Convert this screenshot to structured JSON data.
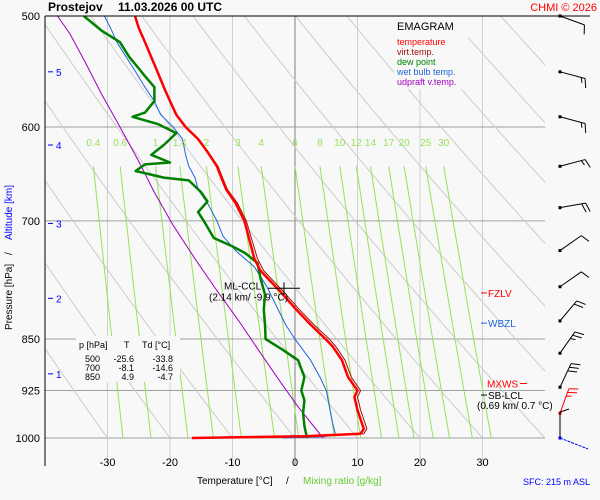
{
  "header": {
    "station": "Prostejov",
    "datetime": "11.03.2026 00 UTC",
    "copyright": "CHMI © 2026"
  },
  "chart_data": {
    "type": "line",
    "subtype": "emagram",
    "title": "Prostejov    11.03.2026 00 UTC",
    "xlabel": "Temperature [°C]",
    "xlabel_separator": "/",
    "xlabel2": "Mixing ratio [g/kg]",
    "ylabel": "Pressure [hPa]",
    "ylabel_separator": "/",
    "ylabel2": "Altitude [km]",
    "xlim": [
      -40,
      32
    ],
    "ylim": [
      1015,
      500
    ],
    "y_scale": "log",
    "grid": true,
    "x_ticks": [
      -30,
      -20,
      -10,
      0,
      10,
      20,
      30
    ],
    "x_tick_labels": [
      "-30",
      "-20",
      "-10",
      "0",
      "10",
      "20",
      "30"
    ],
    "pressure_ticks": [
      500,
      600,
      700,
      850,
      925,
      1000
    ],
    "pressure_tick_labels": [
      "500",
      "600",
      "700",
      "850",
      "925",
      "1000"
    ],
    "altitude_ticks": [
      {
        "km": 5,
        "p": 548
      },
      {
        "km": 4,
        "p": 618
      },
      {
        "km": 3,
        "p": 703
      },
      {
        "km": 2,
        "p": 795
      },
      {
        "km": 1,
        "p": 900
      }
    ],
    "mixing_ratio_labels": [
      "0.4",
      "0.6",
      "1",
      "1.4",
      "2",
      "3",
      "4",
      "6",
      "8",
      "10",
      "12",
      "14",
      "17",
      "20",
      "25",
      "30"
    ],
    "mixing_ratio_values": [
      0.4,
      0.6,
      1,
      1.4,
      2,
      3,
      4,
      6,
      8,
      10,
      12,
      14,
      17,
      20,
      25,
      30
    ],
    "legend": {
      "title": "EMAGRAM",
      "placement": "top-right",
      "entries": [
        {
          "label": "temperature",
          "color": "#ff0000"
        },
        {
          "label": "virt.temp.",
          "color": "#a01010"
        },
        {
          "label": "dew point",
          "color": "#008000"
        },
        {
          "label": "wet bulb temp.",
          "color": "#1e64dc"
        },
        {
          "label": "udpraft v.temp.",
          "color": "#a000c0"
        }
      ]
    },
    "series": [
      {
        "name": "temperature",
        "color": "#ff0000",
        "points": [
          [
            -16.5,
            1000
          ],
          [
            1.5,
            997
          ],
          [
            10.5,
            993
          ],
          [
            11.0,
            985
          ],
          [
            10.5,
            970
          ],
          [
            10.0,
            955
          ],
          [
            9.5,
            935
          ],
          [
            10.0,
            925
          ],
          [
            8.5,
            905
          ],
          [
            7.5,
            880
          ],
          [
            6.0,
            860
          ],
          [
            4.9,
            850
          ],
          [
            2.5,
            830
          ],
          [
            0.0,
            808
          ],
          [
            -2.5,
            785
          ],
          [
            -5.5,
            760
          ],
          [
            -6.5,
            745
          ],
          [
            -8.1,
            700
          ],
          [
            -9.5,
            680
          ],
          [
            -11.0,
            665
          ],
          [
            -11.8,
            652
          ],
          [
            -12.5,
            640
          ],
          [
            -14.0,
            625
          ],
          [
            -15.5,
            612
          ],
          [
            -17.5,
            600
          ],
          [
            -19.0,
            588
          ],
          [
            -20.0,
            575
          ],
          [
            -21.0,
            562
          ],
          [
            -22.0,
            548
          ],
          [
            -23.0,
            535
          ],
          [
            -24.0,
            522
          ],
          [
            -25.0,
            510
          ],
          [
            -25.6,
            500
          ]
        ]
      },
      {
        "name": "virt.temp.",
        "color": "#a01010",
        "points": [
          [
            -16.0,
            1000
          ],
          [
            2.0,
            997
          ],
          [
            11.0,
            993
          ],
          [
            11.5,
            985
          ],
          [
            11.0,
            970
          ],
          [
            10.5,
            955
          ],
          [
            10.0,
            935
          ],
          [
            10.5,
            925
          ],
          [
            9.0,
            905
          ],
          [
            8.0,
            880
          ],
          [
            6.5,
            860
          ],
          [
            5.5,
            850
          ],
          [
            3.0,
            830
          ],
          [
            0.5,
            808
          ],
          [
            -2.0,
            785
          ],
          [
            -5.0,
            760
          ],
          [
            -6.0,
            745
          ],
          [
            -7.8,
            700
          ],
          [
            -9.2,
            680
          ],
          [
            -10.8,
            665
          ],
          [
            -11.6,
            652
          ],
          [
            -12.3,
            640
          ],
          [
            -13.9,
            625
          ],
          [
            -15.4,
            612
          ],
          [
            -17.4,
            600
          ],
          [
            -18.9,
            588
          ],
          [
            -19.9,
            575
          ],
          [
            -20.9,
            562
          ],
          [
            -21.9,
            548
          ],
          [
            -22.9,
            535
          ],
          [
            -23.9,
            522
          ],
          [
            -24.9,
            510
          ],
          [
            -25.5,
            500
          ]
        ]
      },
      {
        "name": "dew point",
        "color": "#008000",
        "points": [
          [
            2.0,
            1000
          ],
          [
            1.8,
            995
          ],
          [
            1.5,
            980
          ],
          [
            1.3,
            960
          ],
          [
            1.5,
            940
          ],
          [
            1.0,
            925
          ],
          [
            1.5,
            905
          ],
          [
            0.5,
            880
          ],
          [
            -2.0,
            865
          ],
          [
            -4.7,
            850
          ],
          [
            -4.8,
            830
          ],
          [
            -5.0,
            810
          ],
          [
            -4.8,
            790
          ],
          [
            -5.5,
            770
          ],
          [
            -6.0,
            750
          ],
          [
            -8.0,
            738
          ],
          [
            -10.0,
            730
          ],
          [
            -13.0,
            720
          ],
          [
            -14.6,
            700
          ],
          [
            -15.5,
            690
          ],
          [
            -14.0,
            678
          ],
          [
            -15.0,
            668
          ],
          [
            -17.0,
            655
          ],
          [
            -21.0,
            652
          ],
          [
            -25.5,
            645
          ],
          [
            -24.0,
            638
          ],
          [
            -20.0,
            636
          ],
          [
            -23.0,
            628
          ],
          [
            -21.0,
            618
          ],
          [
            -19.0,
            606
          ],
          [
            -22.0,
            597
          ],
          [
            -26.0,
            590
          ],
          [
            -24.0,
            586
          ],
          [
            -22.5,
            575
          ],
          [
            -22.5,
            562
          ],
          [
            -24.0,
            552
          ],
          [
            -25.0,
            545
          ],
          [
            -26.5,
            535
          ],
          [
            -28.0,
            522
          ],
          [
            -31.0,
            512
          ],
          [
            -33.8,
            500
          ]
        ]
      },
      {
        "name": "wet bulb temp.",
        "color": "#1e64dc",
        "points": [
          [
            -2.0,
            1000
          ],
          [
            4.5,
            998
          ],
          [
            6.5,
            995
          ],
          [
            6.0,
            975
          ],
          [
            5.5,
            950
          ],
          [
            5.0,
            925
          ],
          [
            4.0,
            905
          ],
          [
            2.5,
            880
          ],
          [
            1.0,
            862
          ],
          [
            0.0,
            850
          ],
          [
            -1.5,
            830
          ],
          [
            -3.0,
            805
          ],
          [
            -4.5,
            780
          ],
          [
            -6.5,
            755
          ],
          [
            -9.5,
            735
          ],
          [
            -11.5,
            718
          ],
          [
            -12.5,
            700
          ],
          [
            -14.0,
            680
          ],
          [
            -15.5,
            665
          ],
          [
            -16.0,
            652
          ],
          [
            -17.0,
            640
          ],
          [
            -17.5,
            628
          ],
          [
            -18.0,
            612
          ],
          [
            -19.5,
            600
          ],
          [
            -21.5,
            588
          ],
          [
            -22.5,
            575
          ],
          [
            -24.0,
            562
          ],
          [
            -25.5,
            548
          ],
          [
            -27.0,
            535
          ],
          [
            -28.5,
            522
          ],
          [
            -29.5,
            510
          ],
          [
            -30.5,
            500
          ]
        ]
      },
      {
        "name": "udpraft v.temp.",
        "color": "#a000c0",
        "points": [
          [
            4.5,
            1000
          ],
          [
            0.5,
            950
          ],
          [
            -2.5,
            910
          ],
          [
            -5.5,
            870
          ],
          [
            -9.0,
            825
          ],
          [
            -12.5,
            785
          ],
          [
            -16.0,
            745
          ],
          [
            -19.5,
            705
          ],
          [
            -22.5,
            668
          ],
          [
            -25.0,
            635
          ],
          [
            -28.0,
            600
          ],
          [
            -31.0,
            568
          ],
          [
            -33.5,
            540
          ],
          [
            -36.0,
            515
          ],
          [
            -38.0,
            500
          ]
        ]
      }
    ],
    "table": {
      "columns": [
        "p [hPa]",
        "T",
        "Td [°C]"
      ],
      "rows": [
        [
          "500",
          "-25.6",
          "-33.8"
        ],
        [
          "700",
          "-8.1",
          "-14.6"
        ],
        [
          "850",
          "4.9",
          "-4.7"
        ]
      ]
    },
    "annotations": [
      {
        "id": "ml-ccl",
        "label": "ML-CCL",
        "detail": "(2.14 km/ -9.9 °C)",
        "p": 782,
        "t": -3.0,
        "color": "#000000"
      },
      {
        "id": "fzlv",
        "label": "FZLV",
        "p": 788,
        "color": "#ff0000"
      },
      {
        "id": "wbzl",
        "label": "WBZL",
        "p": 828,
        "color": "#1e64dc"
      },
      {
        "id": "mxws",
        "label": "MXWS",
        "p": 928,
        "color": "#ff0000"
      },
      {
        "id": "sb-lcl",
        "label": "SB-LCL",
        "detail": "(0.69 km/ 0.7 °C)",
        "p": 938,
        "color": "#000000"
      }
    ],
    "wind_barbs": [
      {
        "p": 500,
        "dir": 290,
        "kt": 10
      },
      {
        "p": 548,
        "dir": 285,
        "kt": 15
      },
      {
        "p": 590,
        "dir": 285,
        "kt": 15
      },
      {
        "p": 640,
        "dir": 255,
        "kt": 15
      },
      {
        "p": 685,
        "dir": 260,
        "kt": 20
      },
      {
        "p": 735,
        "dir": 235,
        "kt": 10
      },
      {
        "p": 780,
        "dir": 235,
        "kt": 10
      },
      {
        "p": 825,
        "dir": 220,
        "kt": 20
      },
      {
        "p": 870,
        "dir": 215,
        "kt": 25
      },
      {
        "p": 920,
        "dir": 205,
        "kt": 30
      },
      {
        "p": 960,
        "dir": 200,
        "kt": 25,
        "color": "#ff0000"
      },
      {
        "p": 1000,
        "dir": 180,
        "kt": 10
      }
    ],
    "surface_wind": {
      "dir": 120,
      "color": "#0000ff"
    }
  },
  "footer": {
    "sfc_label": "SFC: 215 m ASL"
  },
  "colors": {
    "title": "#000000",
    "copyright": "#ff0000",
    "altitude": "#0000ff",
    "mixing_ratio": "#99e05a",
    "grid": "#a0a0a0",
    "dry_adiabat": "#cccccc",
    "sfc": "#0000ff"
  }
}
